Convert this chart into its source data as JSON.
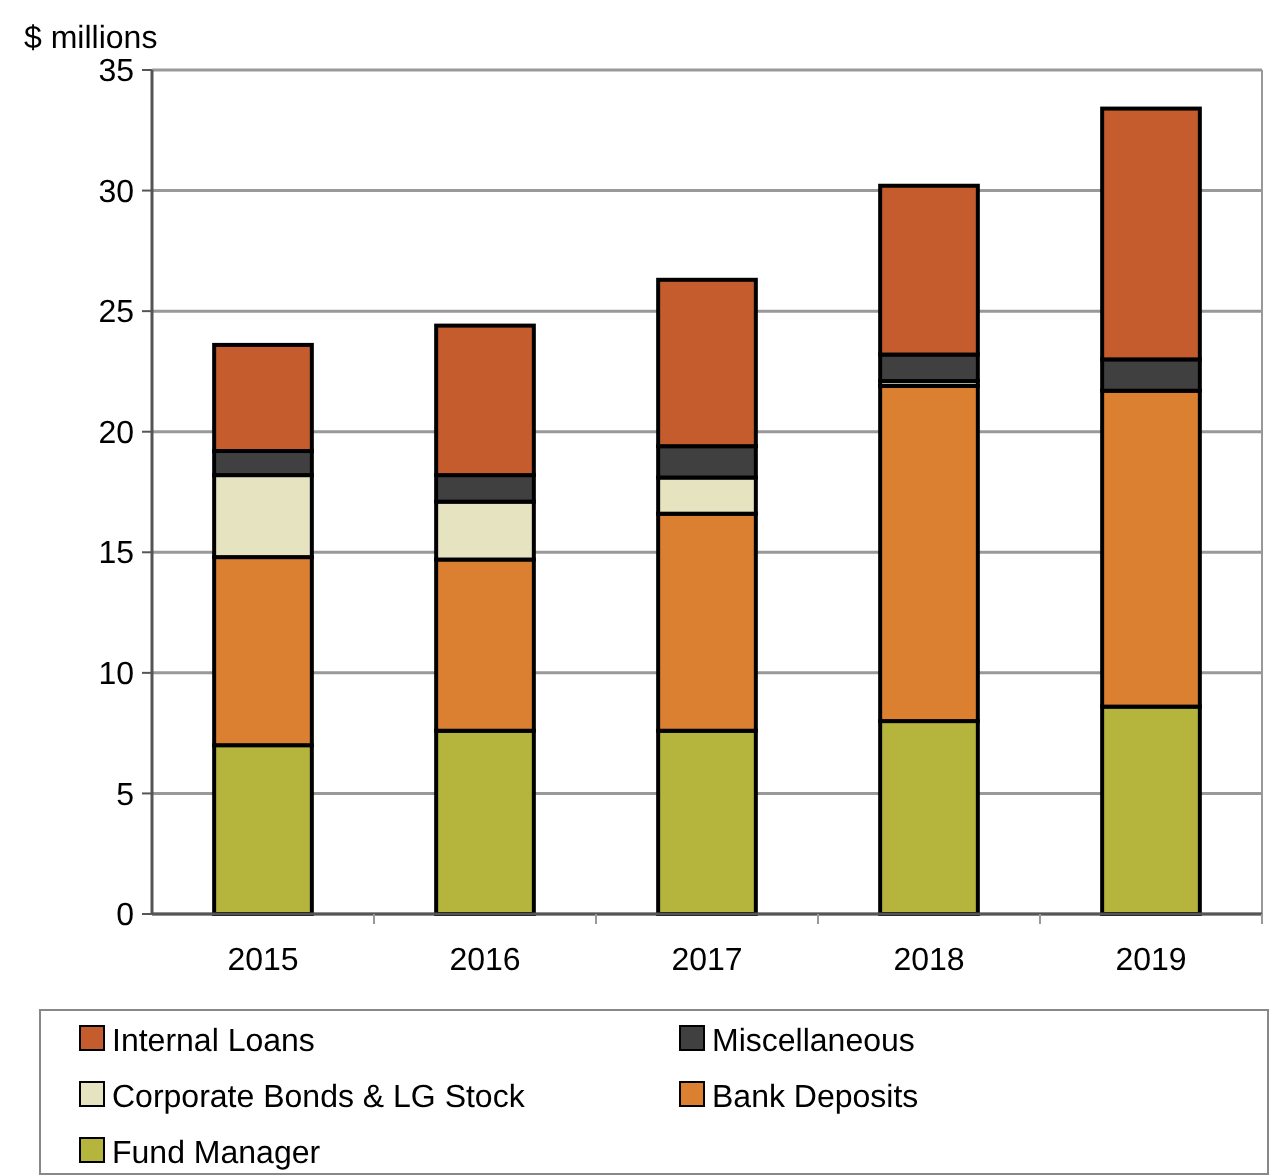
{
  "chart_data": {
    "type": "bar",
    "stacked": true,
    "ylabel": "$ millions",
    "categories": [
      "2015",
      "2016",
      "2017",
      "2018",
      "2019"
    ],
    "series": [
      {
        "name": "Fund Manager",
        "color": "#b5b53e",
        "values": [
          7.0,
          7.6,
          7.6,
          8.0,
          8.6
        ]
      },
      {
        "name": "Bank Deposits",
        "color": "#db8030",
        "values": [
          7.8,
          7.1,
          9.0,
          13.9,
          13.1
        ]
      },
      {
        "name": "Corporate Bonds & LG Stock",
        "color": "#e6e4c0",
        "values": [
          3.4,
          2.4,
          1.5,
          0.2,
          null
        ]
      },
      {
        "name": "Miscellaneous",
        "color": "#404040",
        "values": [
          1.0,
          1.1,
          1.3,
          1.1,
          1.3
        ]
      },
      {
        "name": "Internal Loans",
        "color": "#c45c2e",
        "values": [
          4.4,
          6.2,
          6.9,
          7.0,
          10.4
        ]
      }
    ],
    "ylim": [
      0,
      35
    ],
    "yticks": [
      0,
      5,
      10,
      15,
      20,
      25,
      30,
      35
    ],
    "grid": "y",
    "legend": "bottom"
  }
}
